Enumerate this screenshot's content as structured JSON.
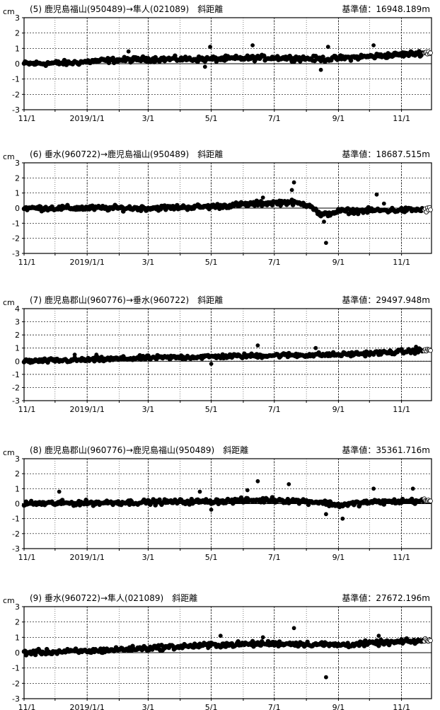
{
  "chart_data": [
    {
      "type": "scatter",
      "unit": "cm",
      "title": "(5)  鹿児島福山(950489)→隼人(021089)　斜距離",
      "baseline": "基準値：16948.189m",
      "ylim": [
        -3,
        3
      ],
      "yticks": [
        "3",
        "2",
        "1",
        "0",
        "-1",
        "-2",
        "-3"
      ],
      "xticks": [
        "11/1",
        "2019/1/1",
        "3/1",
        "5/1",
        "7/1",
        "9/1",
        "11/1"
      ],
      "xlim": [
        "2018-11-01",
        "2019-11-30"
      ],
      "grid": true,
      "series": [
        {
          "trend": [
            [
              "2018-11-01",
              0.0
            ],
            [
              "2018-12-15",
              0.05
            ],
            [
              "2019-01-15",
              0.2
            ],
            [
              "2019-03-01",
              0.3
            ],
            [
              "2019-05-01",
              0.3
            ],
            [
              "2019-07-01",
              0.4
            ],
            [
              "2019-08-20",
              0.3
            ],
            [
              "2019-09-01",
              0.35
            ],
            [
              "2019-11-01",
              0.6
            ],
            [
              "2019-11-30",
              0.75
            ]
          ],
          "outliers": [
            [
              "2019-04-30",
              1.1
            ],
            [
              "2019-06-10",
              1.2
            ],
            [
              "2019-08-22",
              1.1
            ],
            [
              "2019-10-05",
              1.2
            ],
            [
              "2019-08-15",
              -0.4
            ],
            [
              "2019-04-25",
              -0.2
            ],
            [
              "2019-02-10",
              0.8
            ]
          ]
        }
      ]
    },
    {
      "type": "scatter",
      "unit": "cm",
      "title": "(6)  垂水(960722)→鹿児島福山(950489)　斜距離",
      "baseline": "基準値：18687.515m",
      "ylim": [
        -3,
        3
      ],
      "yticks": [
        "3",
        "2",
        "1",
        "0",
        "-1",
        "-2",
        "-3"
      ],
      "xticks": [
        "11/1",
        "2019/1/1",
        "3/1",
        "5/1",
        "7/1",
        "9/1",
        "11/1"
      ],
      "xlim": [
        "2018-11-01",
        "2019-11-30"
      ],
      "grid": true,
      "series": [
        {
          "trend": [
            [
              "2018-11-01",
              0.0
            ],
            [
              "2019-03-01",
              0.0
            ],
            [
              "2019-05-01",
              0.1
            ],
            [
              "2019-06-15",
              0.3
            ],
            [
              "2019-07-15",
              0.4
            ],
            [
              "2019-08-05",
              0.2
            ],
            [
              "2019-08-15",
              -0.5
            ],
            [
              "2019-09-01",
              -0.2
            ],
            [
              "2019-11-30",
              -0.1
            ]
          ],
          "outliers": [
            [
              "2019-07-20",
              1.7
            ],
            [
              "2019-07-18",
              1.2
            ],
            [
              "2019-08-20",
              -2.3
            ],
            [
              "2019-10-08",
              0.9
            ],
            [
              "2019-08-18",
              -0.9
            ],
            [
              "2019-06-20",
              0.7
            ],
            [
              "2019-10-15",
              0.3
            ]
          ]
        }
      ]
    },
    {
      "type": "scatter",
      "unit": "cm",
      "title": "(7)  鹿児島郡山(960776)→垂水(960722)　斜距離",
      "baseline": "基準値：29497.948m",
      "ylim": [
        -3,
        4
      ],
      "yticks": [
        "4",
        "3",
        "2",
        "1",
        "0",
        "-1",
        "-2",
        "-3"
      ],
      "xticks": [
        "11/1",
        "2019/1/1",
        "3/1",
        "5/1",
        "7/1",
        "9/1",
        "11/1"
      ],
      "xlim": [
        "2018-11-01",
        "2019-11-30"
      ],
      "grid": true,
      "series": [
        {
          "trend": [
            [
              "2018-11-01",
              0.0
            ],
            [
              "2019-01-01",
              0.1
            ],
            [
              "2019-03-01",
              0.25
            ],
            [
              "2019-05-01",
              0.35
            ],
            [
              "2019-07-01",
              0.45
            ],
            [
              "2019-09-01",
              0.5
            ],
            [
              "2019-10-15",
              0.65
            ],
            [
              "2019-11-30",
              0.85
            ]
          ],
          "outliers": [
            [
              "2019-06-15",
              1.2
            ],
            [
              "2019-08-10",
              1.0
            ],
            [
              "2019-11-15",
              1.1
            ],
            [
              "2019-01-10",
              0.5
            ],
            [
              "2018-12-20",
              0.5
            ],
            [
              "2019-05-01",
              -0.2
            ]
          ]
        }
      ]
    },
    {
      "type": "scatter",
      "unit": "cm",
      "title": "(8)  鹿児島郡山(960776)→鹿児島福山(950489)　斜距離",
      "baseline": "基準値：35361.716m",
      "ylim": [
        -3,
        3
      ],
      "yticks": [
        "3",
        "2",
        "1",
        "0",
        "-1",
        "-2",
        "-3"
      ],
      "xticks": [
        "11/1",
        "2019/1/1",
        "3/1",
        "5/1",
        "7/1",
        "9/1",
        "11/1"
      ],
      "xlim": [
        "2018-11-01",
        "2019-11-30"
      ],
      "grid": true,
      "series": [
        {
          "trend": [
            [
              "2018-11-01",
              0.0
            ],
            [
              "2019-03-01",
              0.1
            ],
            [
              "2019-05-01",
              0.15
            ],
            [
              "2019-07-01",
              0.25
            ],
            [
              "2019-08-15",
              0.1
            ],
            [
              "2019-09-01",
              -0.1
            ],
            [
              "2019-10-01",
              0.1
            ],
            [
              "2019-11-30",
              0.2
            ]
          ],
          "outliers": [
            [
              "2019-06-15",
              1.5
            ],
            [
              "2019-07-15",
              1.3
            ],
            [
              "2019-06-05",
              0.9
            ],
            [
              "2019-09-05",
              -1.0
            ],
            [
              "2019-10-05",
              1.0
            ],
            [
              "2019-11-12",
              1.0
            ],
            [
              "2019-08-20",
              -0.7
            ],
            [
              "2018-12-05",
              0.8
            ],
            [
              "2019-04-20",
              0.8
            ],
            [
              "2019-05-01",
              -0.4
            ]
          ]
        }
      ]
    },
    {
      "type": "scatter",
      "unit": "cm",
      "title": "(9)  垂水(960722)→隼人(021089)　斜距離",
      "baseline": "基準値：27672.196m",
      "ylim": [
        -3,
        3
      ],
      "yticks": [
        "3",
        "2",
        "1",
        "0",
        "-1",
        "-2",
        "-3"
      ],
      "xticks": [
        "11/1",
        "2019/1/1",
        "3/1",
        "5/1",
        "7/1",
        "9/1",
        "11/1"
      ],
      "xlim": [
        "2018-11-01",
        "2019-11-30"
      ],
      "grid": true,
      "series": [
        {
          "trend": [
            [
              "2018-11-01",
              0.0
            ],
            [
              "2019-01-01",
              0.1
            ],
            [
              "2019-03-01",
              0.3
            ],
            [
              "2019-05-01",
              0.5
            ],
            [
              "2019-07-01",
              0.6
            ],
            [
              "2019-08-10",
              0.55
            ],
            [
              "2019-09-01",
              0.5
            ],
            [
              "2019-11-30",
              0.8
            ]
          ],
          "outliers": [
            [
              "2019-07-20",
              1.6
            ],
            [
              "2019-08-20",
              -1.6
            ],
            [
              "2019-05-10",
              1.1
            ],
            [
              "2019-10-10",
              1.1
            ],
            [
              "2019-06-20",
              1.0
            ],
            [
              "2019-04-28",
              0.3
            ]
          ]
        }
      ]
    }
  ]
}
